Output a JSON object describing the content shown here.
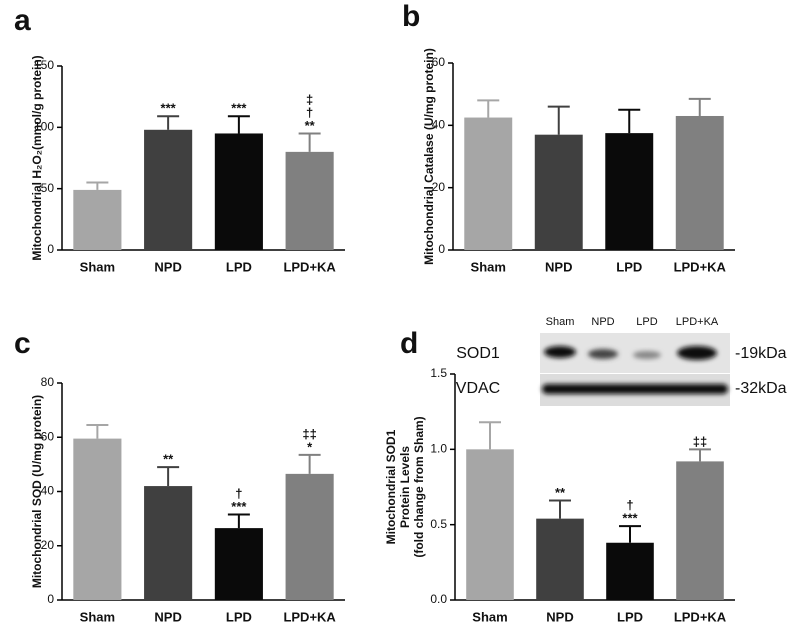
{
  "chart_data": [
    {
      "type": "bar",
      "label": "a",
      "ylabel": [
        "Mitochondrial H₂O₂(mmol/g protein)"
      ],
      "categories": [
        "Sham",
        "NPD",
        "LPD",
        "LPD+KA"
      ],
      "colors": [
        "#a6a6a6",
        "#404040",
        "#0a0a0a",
        "#808080"
      ],
      "values": [
        49,
        98,
        95,
        80
      ],
      "errors": [
        6,
        11,
        14,
        15
      ],
      "annotations": [
        [],
        [
          "***"
        ],
        [
          "***"
        ],
        [
          "**",
          "†",
          "‡"
        ]
      ],
      "ylim": [
        0,
        150
      ],
      "yticks": [
        0,
        50,
        100,
        150
      ]
    },
    {
      "type": "bar",
      "label": "b",
      "ylabel": [
        "Mitochondrial Catalase (U/mg protein)"
      ],
      "categories": [
        "Sham",
        "NPD",
        "LPD",
        "LPD+KA"
      ],
      "colors": [
        "#a6a6a6",
        "#404040",
        "#0a0a0a",
        "#808080"
      ],
      "values": [
        42.5,
        37,
        37.5,
        43
      ],
      "errors": [
        5.5,
        9,
        7.5,
        5.5
      ],
      "ylim": [
        0,
        60
      ],
      "yticks": [
        0,
        20,
        40,
        60
      ]
    },
    {
      "type": "bar",
      "label": "c",
      "ylabel": [
        "Mitochondrial SOD (U/mg protein)"
      ],
      "categories": [
        "Sham",
        "NPD",
        "LPD",
        "LPD+KA"
      ],
      "colors": [
        "#a6a6a6",
        "#404040",
        "#0a0a0a",
        "#808080"
      ],
      "values": [
        59.5,
        42,
        26.5,
        46.5
      ],
      "errors": [
        5,
        7,
        5,
        7
      ],
      "annotations": [
        [],
        [
          "**"
        ],
        [
          "***",
          "†"
        ],
        [
          "*",
          "‡‡"
        ]
      ],
      "ylim": [
        0,
        80
      ],
      "yticks": [
        0,
        20,
        40,
        60,
        80
      ]
    },
    {
      "type": "bar",
      "label": "d",
      "ylabel": [
        "Mitochondrial SOD1",
        "Protein Levels",
        "(fold change from Sham)"
      ],
      "categories": [
        "Sham",
        "NPD",
        "LPD",
        "LPD+KA"
      ],
      "colors": [
        "#a6a6a6",
        "#404040",
        "#0a0a0a",
        "#808080"
      ],
      "values": [
        1.0,
        0.54,
        0.38,
        0.92
      ],
      "errors": [
        0.18,
        0.12,
        0.11,
        0.08
      ],
      "annotations": [
        [],
        [
          "**"
        ],
        [
          "***",
          "†"
        ],
        [
          "‡‡"
        ]
      ],
      "ylim": [
        0,
        1.5
      ],
      "yticks": [
        {
          "value": 0,
          "label": "0.0"
        },
        0.5,
        {
          "value": 1,
          "label": "1.0"
        },
        1.5
      ],
      "blot": {
        "lanes": [
          "Sham",
          "NPD",
          "LPD",
          "LPD+KA"
        ],
        "rows": [
          {
            "name": "SOD1",
            "size": "-19kDa"
          },
          {
            "name": "VDAC",
            "size": "-32kDa"
          }
        ]
      }
    }
  ]
}
